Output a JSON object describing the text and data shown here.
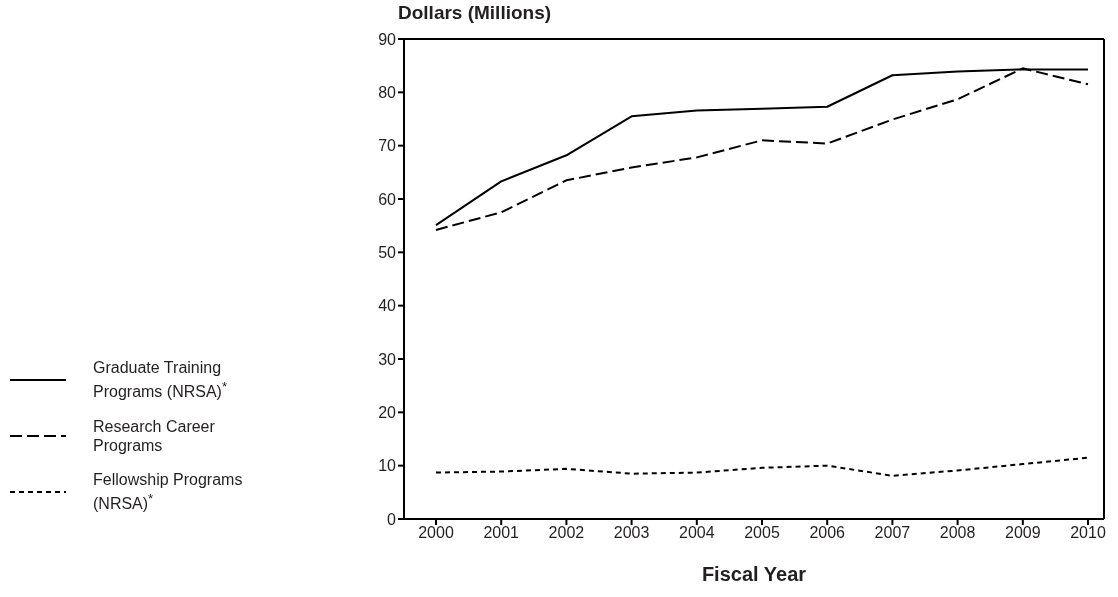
{
  "chart_data": {
    "type": "line",
    "ylabel": "Dollars (Millions)",
    "xlabel": "Fiscal Year",
    "categories": [
      "2000",
      "2001",
      "2002",
      "2003",
      "2004",
      "2005",
      "2006",
      "2007",
      "2008",
      "2009",
      "2010"
    ],
    "series": [
      {
        "name": "Graduate Training Programs (NRSA)$^{*}$",
        "color": "#000000",
        "line_style": "solid",
        "values": [
          55.1,
          63.3,
          68.2,
          75.5,
          76.6,
          76.9,
          77.3,
          83.2,
          83.9,
          84.3,
          84.3
        ]
      },
      {
        "name": "Research Career Programs",
        "color": "#000000",
        "line_style": "dashed",
        "values": [
          54.2,
          57.5,
          63.5,
          65.9,
          67.8,
          71.0,
          70.4,
          74.9,
          78.7,
          84.5,
          81.5
        ]
      },
      {
        "name": "Fellowship Programs (NRSA)$^{*}$",
        "color": "#000000",
        "line_style": "dotted",
        "values": [
          8.7,
          8.9,
          9.4,
          8.5,
          8.7,
          9.6,
          10.0,
          8.1,
          9.1,
          10.3,
          11.5
        ]
      }
    ],
    "ylim": [
      0,
      90
    ],
    "yticks": [
      0,
      10,
      20,
      30,
      40,
      50,
      60,
      70,
      80,
      90
    ],
    "grid": false,
    "legend": "left",
    "marker": "none"
  }
}
